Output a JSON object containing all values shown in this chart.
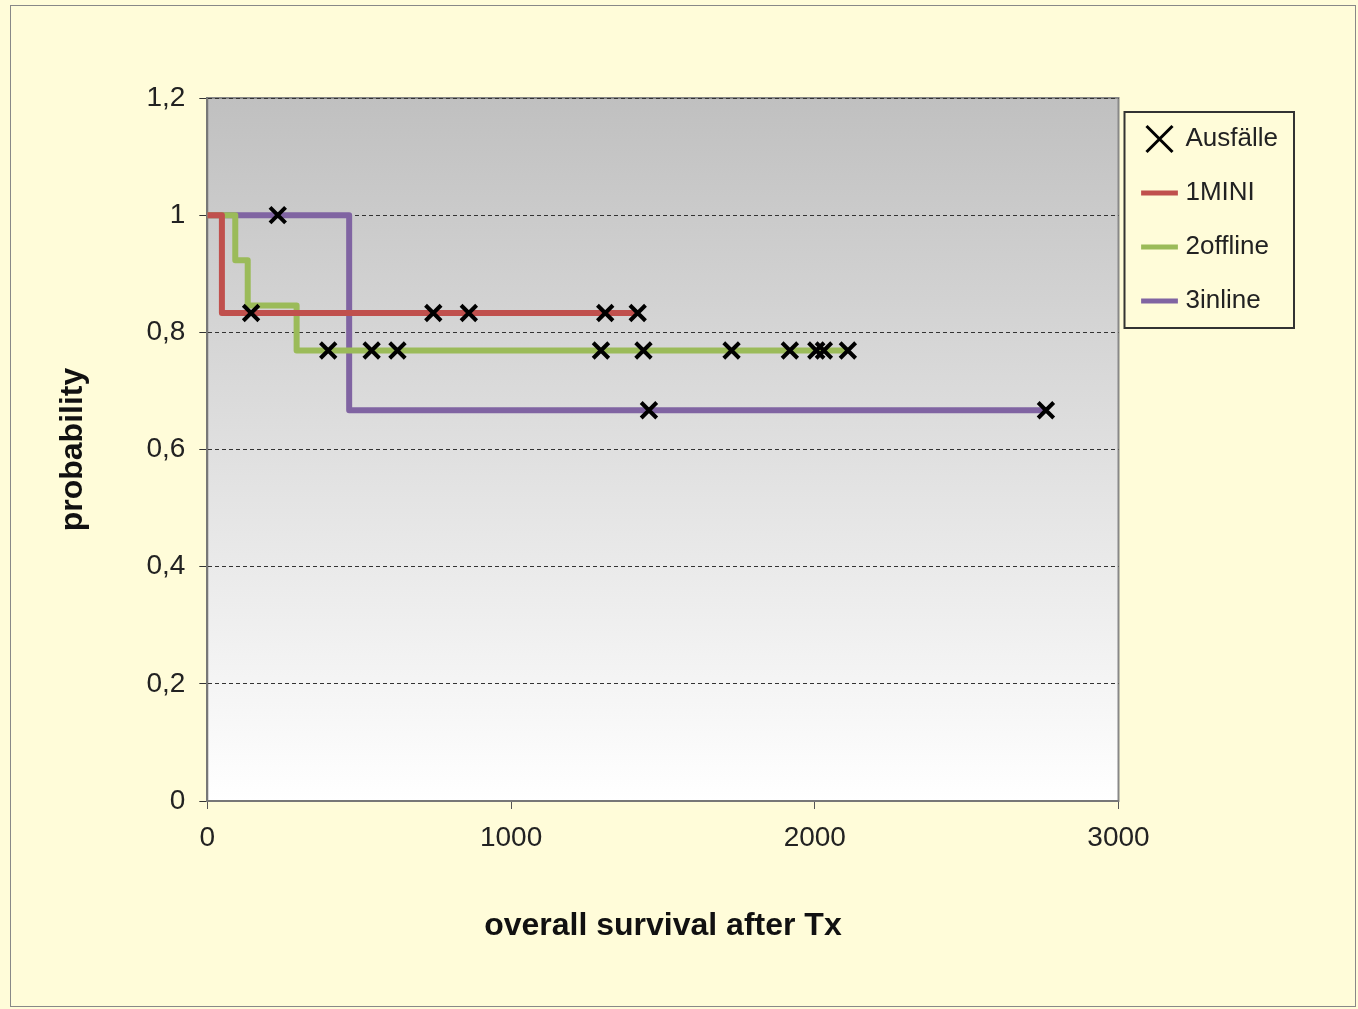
{
  "chart_data": {
    "type": "step",
    "xlabel": "overall survival after Tx",
    "ylabel": "probability",
    "xlim": [
      0,
      3000
    ],
    "xticks": [
      0,
      1000,
      2000,
      3000
    ],
    "ylim": [
      0,
      1.2
    ],
    "yticks": [
      0,
      {
        "value": 0.2,
        "label": "0,2"
      },
      {
        "value": 0.4,
        "label": "0,4"
      },
      {
        "value": 0.6,
        "label": "0,6"
      },
      {
        "value": 0.8,
        "label": "0,8"
      },
      1,
      {
        "value": 1.2,
        "label": "1,2"
      }
    ],
    "grid": "y",
    "legend": "right",
    "series": [
      {
        "name": "Ausfälle",
        "type": "scatter",
        "marker": "cross",
        "color": "#000000",
        "x": [
          232,
          144,
          744,
          861,
          1310,
          1417,
          398,
          541,
          626,
          1296,
          1436,
          1726,
          1918,
          2005,
          2030,
          2109,
          1454,
          2761
        ],
        "values": [
          1,
          0.833,
          0.833,
          0.833,
          0.833,
          0.833,
          0.769,
          0.769,
          0.769,
          0.769,
          0.769,
          0.769,
          0.769,
          0.769,
          0.769,
          0.769,
          0.667,
          0.667
        ]
      },
      {
        "name": "1MINI",
        "marker": "none",
        "color": "#c0504d",
        "x": [
          0,
          48,
          1420
        ],
        "values": [
          1,
          0.833,
          0.833
        ]
      },
      {
        "name": "2offline",
        "marker": "none",
        "color": "#9bbb59",
        "x": [
          0,
          92,
          133,
          294,
          2110
        ],
        "values": [
          1,
          0.923,
          0.846,
          0.769,
          0.769
        ]
      },
      {
        "name": "3inline",
        "marker": "none",
        "color": "#8064a2",
        "x": [
          0,
          467,
          2761
        ],
        "values": [
          1,
          0.667,
          0.667
        ]
      }
    ]
  }
}
